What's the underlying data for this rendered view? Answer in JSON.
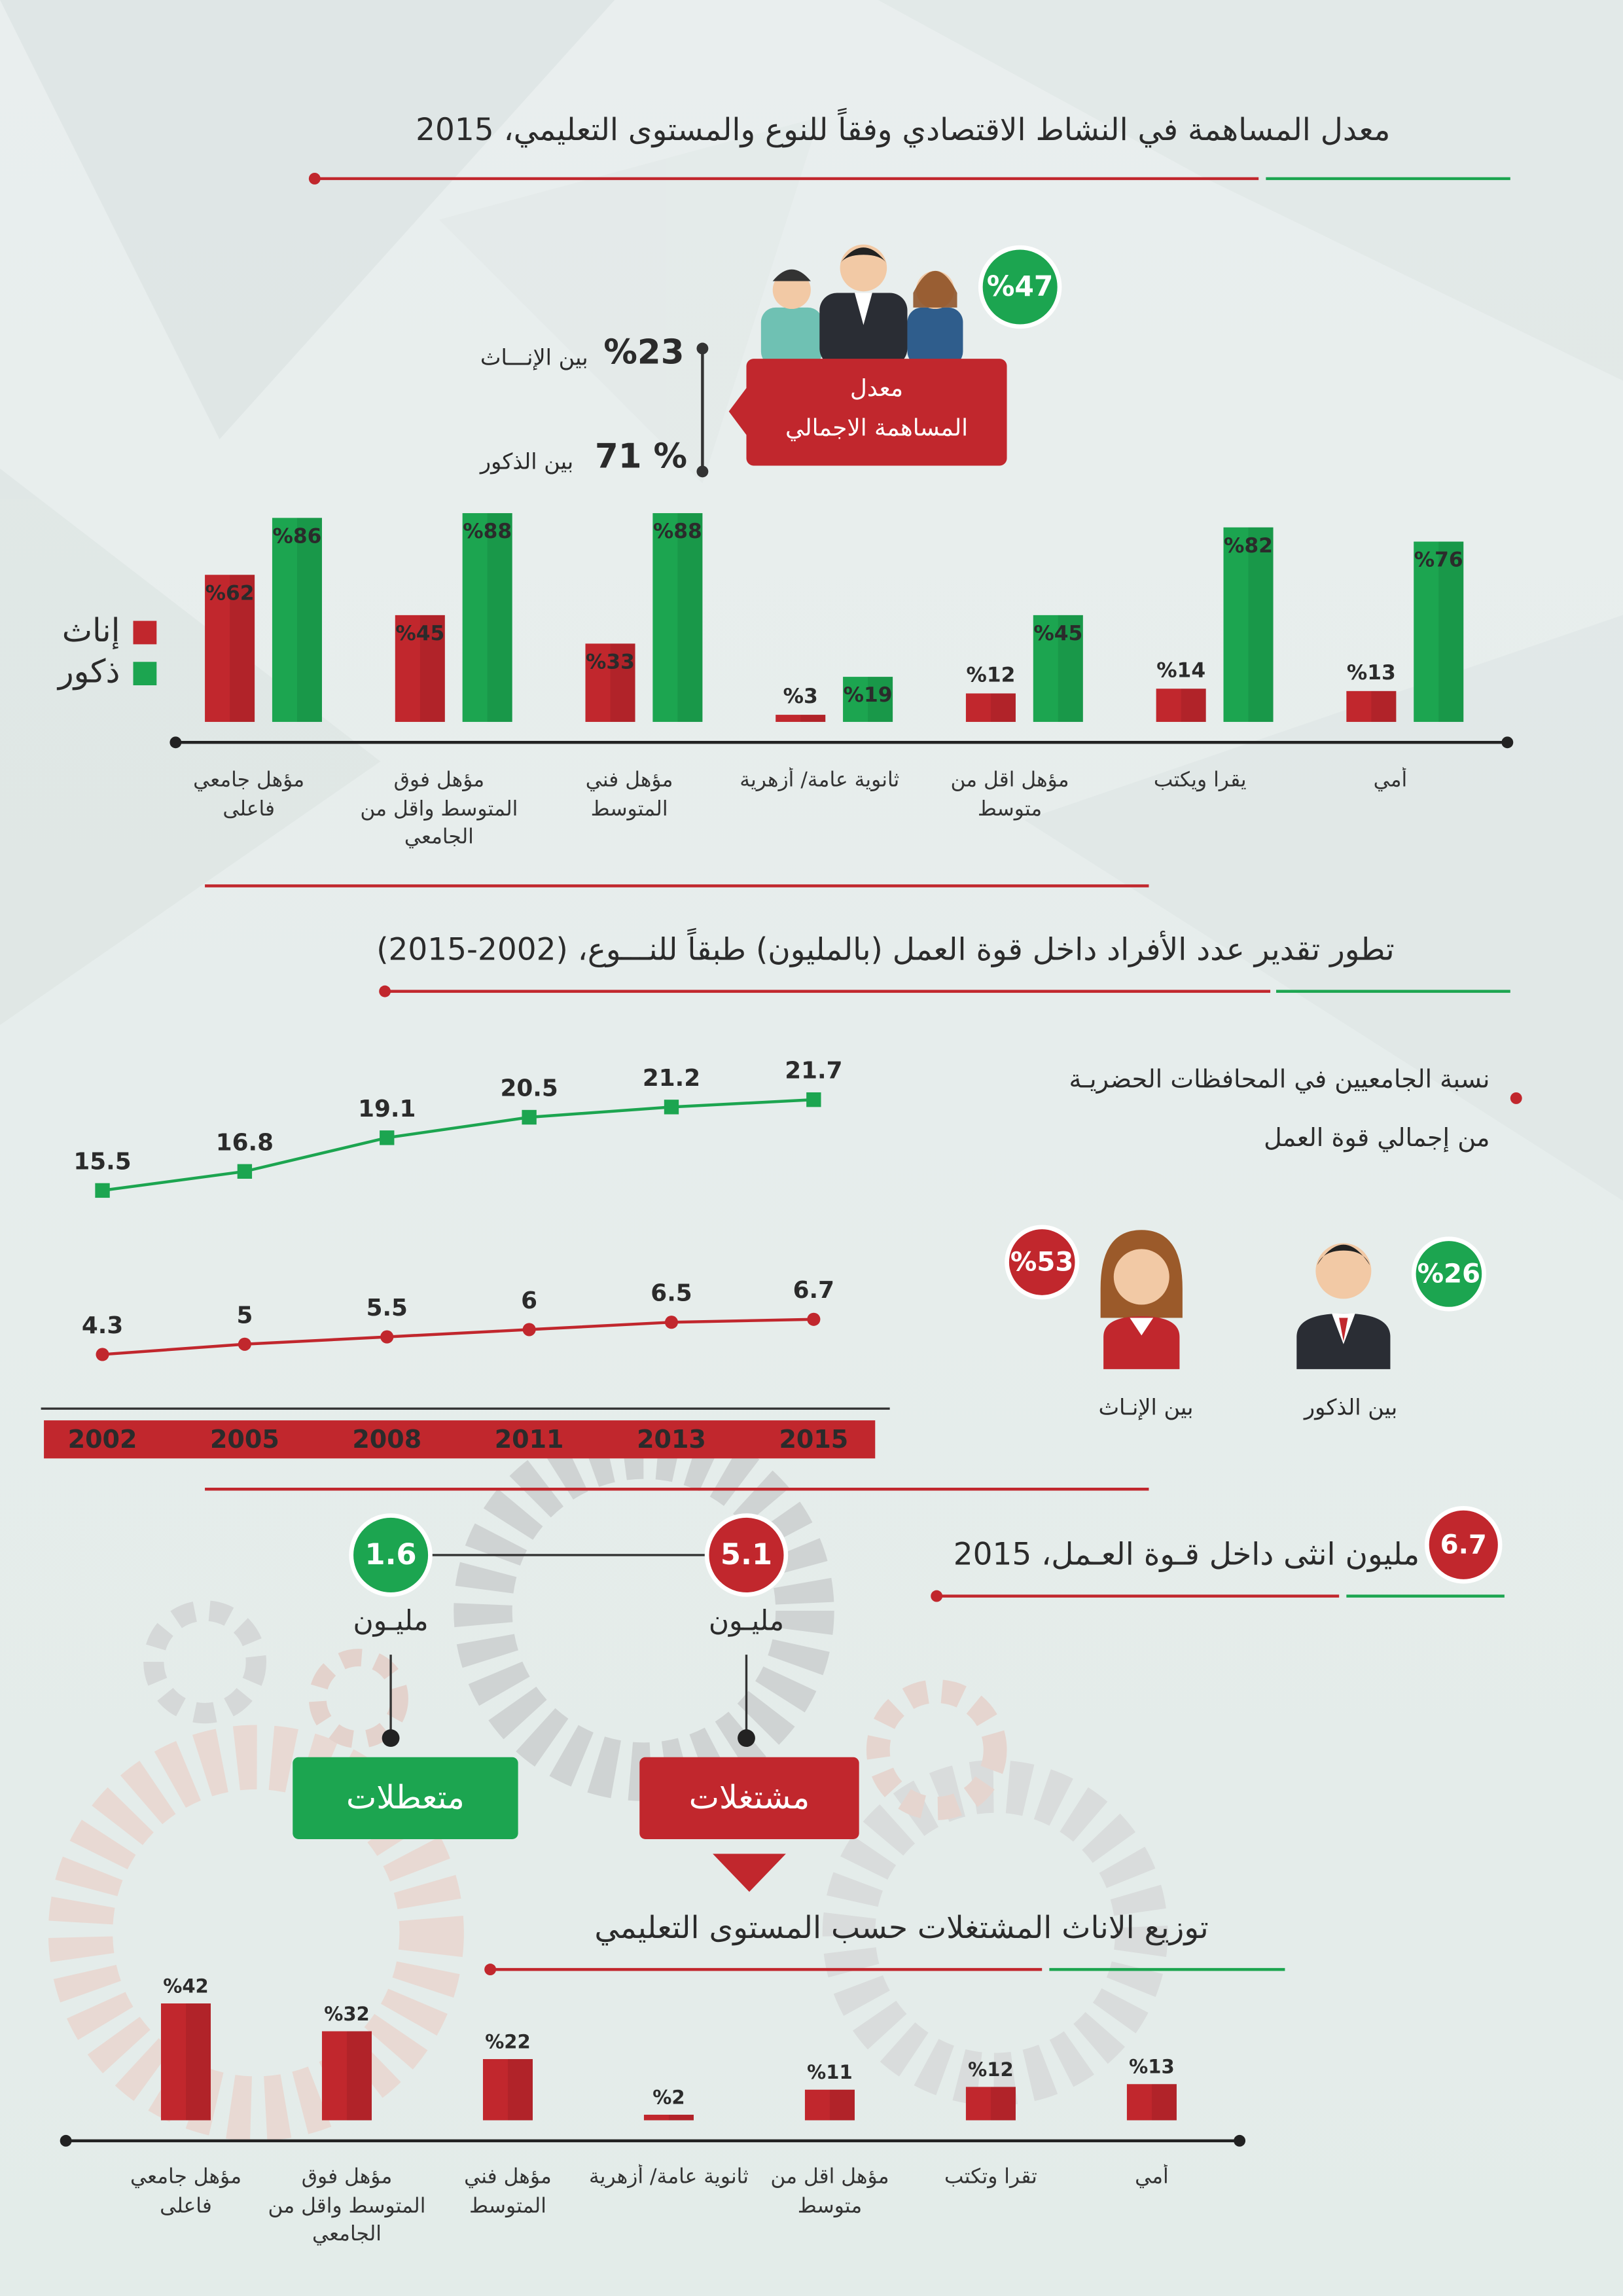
{
  "chart_data": [
    {
      "type": "bar",
      "title": "معدل المساهمة في النشاط الاقتصادي وفقاً للنوع والمستوى التعليمي، 2015",
      "categories": [
        "أمي",
        "يقرا ويكتب",
        "مؤهل اقل من متوسط",
        "ثانوية عامة/ أزهرية",
        "مؤهل فني المتوسط",
        "مؤهل فوق المتوسط واقل من الجامعي",
        "مؤهل جامعي فاعلى"
      ],
      "series": [
        {
          "name": "إناث",
          "color": "#c1272d",
          "values": [
            13,
            14,
            12,
            3,
            33,
            45,
            62
          ],
          "value_labels": [
            "%13",
            "%14",
            "%12",
            "%3",
            "%33",
            "%45",
            "%62"
          ]
        },
        {
          "name": "ذكور",
          "color": "#1ca550",
          "values": [
            76,
            82,
            45,
            19,
            88,
            88,
            86
          ],
          "value_labels": [
            "%76",
            "%82",
            "%45",
            "%19",
            "%88",
            "%88",
            "%86"
          ]
        }
      ],
      "ylim": [
        0,
        100
      ]
    },
    {
      "type": "line",
      "title": "تطور تقدير عدد الأفراد داخل قوة العمل (بالمليون) طبقاً للنـــوع، (2002-2015)",
      "categories": [
        "2002",
        "2005",
        "2008",
        "2011",
        "2013",
        "2015"
      ],
      "series": [
        {
          "color": "#1ca550",
          "values": [
            15.5,
            16.8,
            19.1,
            20.5,
            21.2,
            21.7
          ]
        },
        {
          "color": "#c1272d",
          "values": [
            4.3,
            5,
            5.5,
            6,
            6.5,
            6.7
          ]
        }
      ],
      "ylim": [
        0,
        30
      ]
    },
    {
      "type": "bar",
      "title": "توزيع الاناث المشتغلات حسب المستوى التعليمي",
      "categories": [
        "أمي",
        "تقرا وتكتب",
        "مؤهل اقل من متوسط",
        "ثانوية عامة/ أزهرية",
        "مؤهل فني المتوسط",
        "مؤهل فوق المتوسط واقل من الجامعي",
        "مؤهل جامعي فاعلى"
      ],
      "values": [
        13,
        12,
        11,
        2,
        22,
        32,
        42
      ],
      "value_labels": [
        "%13",
        "%12",
        "%11",
        "%2",
        "%22",
        "%32",
        "%42"
      ],
      "color": "#c1272d",
      "ylim": [
        0,
        50
      ]
    }
  ],
  "participation": {
    "total": "%47",
    "label_lines": [
      "معدل",
      "المساهمة الاجمالي"
    ],
    "female_value": "%23",
    "female_label": "بين الإنـــاث",
    "male_value": "71 %",
    "male_label": "بين الذكور"
  },
  "graduates": {
    "lines": [
      "نسبة الجامعيين في المحافظات الحضريـة",
      "من إجمالي قوة العمل"
    ],
    "female_value": "%53",
    "female_label": "بين الإنـاث",
    "male_value": "%26",
    "male_label": "بين الذكور"
  },
  "workforce": {
    "badge": "6.7",
    "heading": "مليون انثى داخل قـوة العـمل، 2015",
    "employed_value": "5.1",
    "employed_unit": "مليـون",
    "employed_label": "مشتغلات",
    "unemployed_value": "1.6",
    "unemployed_unit": "مليـون",
    "unemployed_label": "متعطلات"
  }
}
